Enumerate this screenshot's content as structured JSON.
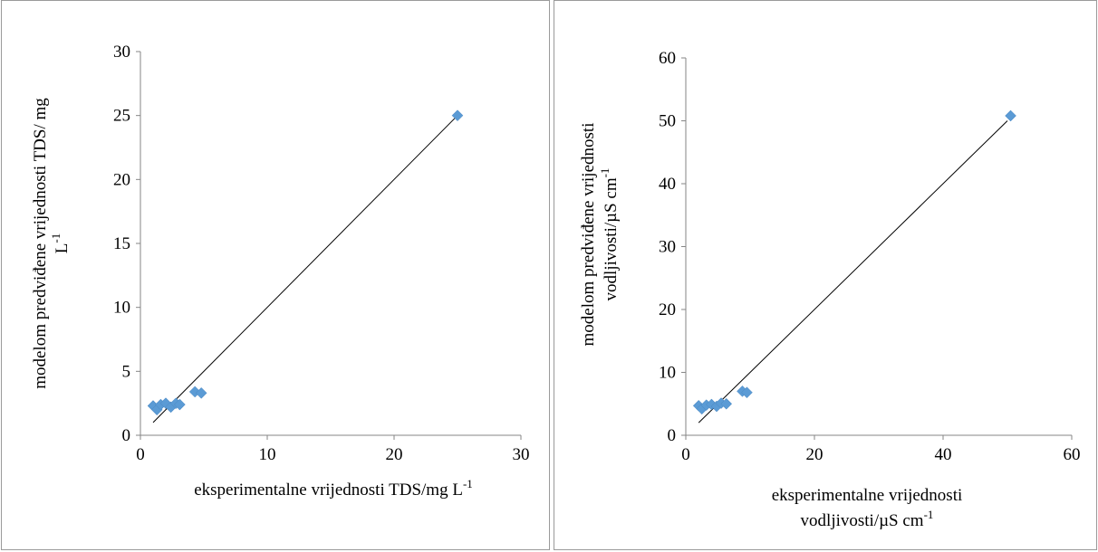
{
  "chart_data": [
    {
      "type": "scatter",
      "title": "",
      "xlabel": "eksperimentalne vrijednosti TDS/mg L",
      "xlabel_sup": "-1",
      "ylabel_line1": "modelom predviđene vrijednosti TDS/ mg",
      "ylabel_line2": "L",
      "ylabel_sup": "-1",
      "xlim": [
        0,
        30
      ],
      "ylim": [
        0,
        30
      ],
      "xticks": [
        0,
        10,
        20,
        30
      ],
      "yticks": [
        0,
        5,
        10,
        15,
        20,
        25,
        30
      ],
      "marker_color": "#5b9bd5",
      "points": [
        {
          "x": 1.0,
          "y": 2.3
        },
        {
          "x": 1.3,
          "y": 2.0
        },
        {
          "x": 1.6,
          "y": 2.4
        },
        {
          "x": 2.0,
          "y": 2.5
        },
        {
          "x": 2.4,
          "y": 2.2
        },
        {
          "x": 2.8,
          "y": 2.5
        },
        {
          "x": 3.1,
          "y": 2.4
        },
        {
          "x": 4.3,
          "y": 3.4
        },
        {
          "x": 4.8,
          "y": 3.3
        },
        {
          "x": 25.0,
          "y": 25.0
        }
      ],
      "trendline": {
        "x": [
          1.0,
          25.0
        ],
        "y": [
          1.0,
          25.0
        ]
      }
    },
    {
      "type": "scatter",
      "title": "",
      "xlabel_line1": "eksperimentalne vrijednosti",
      "xlabel_line2": "vodljivosti/µS cm",
      "xlabel_sup": "-1",
      "ylabel_line1": "modelom predviđene vrijednosti",
      "ylabel_line2": "vodljivosti/µS cm",
      "ylabel_sup": "-1",
      "xlim": [
        0,
        60
      ],
      "ylim": [
        0,
        60
      ],
      "xticks": [
        0,
        20,
        40,
        60
      ],
      "yticks": [
        0,
        10,
        20,
        30,
        40,
        50,
        60
      ],
      "marker_color": "#5b9bd5",
      "points": [
        {
          "x": 2.0,
          "y": 4.7
        },
        {
          "x": 2.5,
          "y": 4.2
        },
        {
          "x": 3.2,
          "y": 4.8
        },
        {
          "x": 4.0,
          "y": 4.9
        },
        {
          "x": 4.8,
          "y": 4.6
        },
        {
          "x": 5.5,
          "y": 5.1
        },
        {
          "x": 6.3,
          "y": 5.0
        },
        {
          "x": 8.8,
          "y": 7.0
        },
        {
          "x": 9.5,
          "y": 6.8
        },
        {
          "x": 50.5,
          "y": 50.8
        }
      ],
      "trendline": {
        "x": [
          2.0,
          50.0
        ],
        "y": [
          2.0,
          50.0
        ]
      }
    }
  ]
}
